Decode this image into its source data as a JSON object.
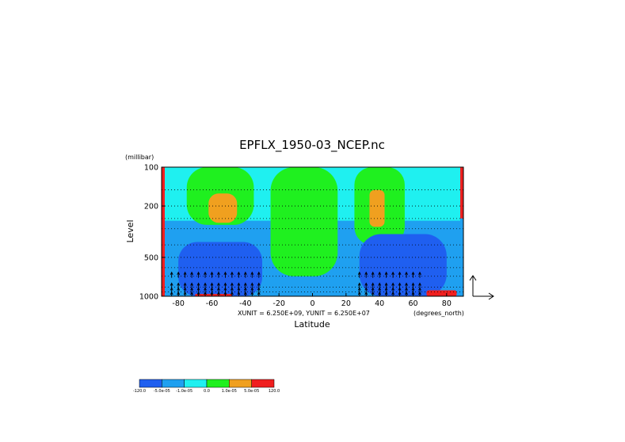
{
  "chart_data": {
    "type": "heatmap",
    "title": "EPFLX_1950-03_NCEP.nc",
    "xlabel": "Latitude",
    "ylabel": "Level",
    "x_units": "(degrees_north)",
    "y_units": "(millibar)",
    "xlim": [
      -90,
      90
    ],
    "ylim": [
      1000,
      100
    ],
    "y_scale": "log",
    "x_ticks": [
      "-80",
      "-60",
      "-40",
      "-20",
      "0",
      "20",
      "40",
      "60",
      "80"
    ],
    "x_tick_values": [
      -80,
      -60,
      -40,
      -20,
      0,
      20,
      40,
      60,
      80
    ],
    "y_ticks": [
      "100",
      "200",
      "500",
      "1000"
    ],
    "y_tick_values": [
      100,
      200,
      500,
      1000
    ],
    "vector_scale_text": "XUNIT = 6.250E+09, YUNIT = 6.250E+07",
    "colorbar": {
      "labels": [
        "-120.0",
        "-5.0e-05",
        "-1.0e-05",
        "0.0",
        "1.0e-05",
        "5.0e-05",
        "120.0"
      ],
      "colors": [
        "#1f5ff0",
        "#1fa0f0",
        "#1ff0f0",
        "#1ff01f",
        "#f0a01f",
        "#f01f1f"
      ]
    },
    "palette": {
      "deep_blue": "#1f5ff0",
      "blue": "#1fa0f0",
      "cyan": "#1ff0f0",
      "green": "#1ff01f",
      "orange": "#f0a01f",
      "red": "#f01f1f"
    },
    "levels_mb": [
      100,
      150,
      200,
      250,
      300,
      400,
      500,
      600,
      700,
      850,
      925,
      1000
    ],
    "regions": [
      {
        "name": "green-sh-upper",
        "color": "green",
        "lat": [
          -75,
          -35
        ],
        "lev": [
          100,
          280
        ]
      },
      {
        "name": "orange-sh-upper",
        "color": "orange",
        "lat": [
          -62,
          -45
        ],
        "lev": [
          160,
          270
        ]
      },
      {
        "name": "green-tropics",
        "color": "green",
        "lat": [
          -25,
          15
        ],
        "lev": [
          100,
          700
        ]
      },
      {
        "name": "green-nh-upper",
        "color": "green",
        "lat": [
          25,
          55
        ],
        "lev": [
          100,
          400
        ]
      },
      {
        "name": "orange-nh-upper",
        "color": "orange",
        "lat": [
          34,
          43
        ],
        "lev": [
          150,
          290
        ]
      },
      {
        "name": "deep-blue-sh-lower",
        "color": "deep_blue",
        "lat": [
          -80,
          -30
        ],
        "lev": [
          380,
          1000
        ]
      },
      {
        "name": "deep-blue-nh-lower",
        "color": "deep_blue",
        "lat": [
          28,
          80
        ],
        "lev": [
          330,
          1000
        ]
      },
      {
        "name": "red-sh-surface",
        "color": "red",
        "lat": [
          -70,
          -48
        ],
        "lev": [
          960,
          1000
        ]
      },
      {
        "name": "red-nh-surface",
        "color": "red",
        "lat": [
          68,
          86
        ],
        "lev": [
          900,
          1000
        ]
      }
    ],
    "vectors": {
      "description": "EP flux arrows, mostly upward, in lower troposphere",
      "lat": [
        -84,
        -80,
        -76,
        -72,
        -68,
        -64,
        -60,
        -56,
        -52,
        -48,
        -44,
        -40,
        -36,
        -32,
        28,
        32,
        36,
        40,
        44,
        48,
        52,
        56,
        60,
        64
      ],
      "lev_range": [
        700,
        1000
      ]
    }
  }
}
